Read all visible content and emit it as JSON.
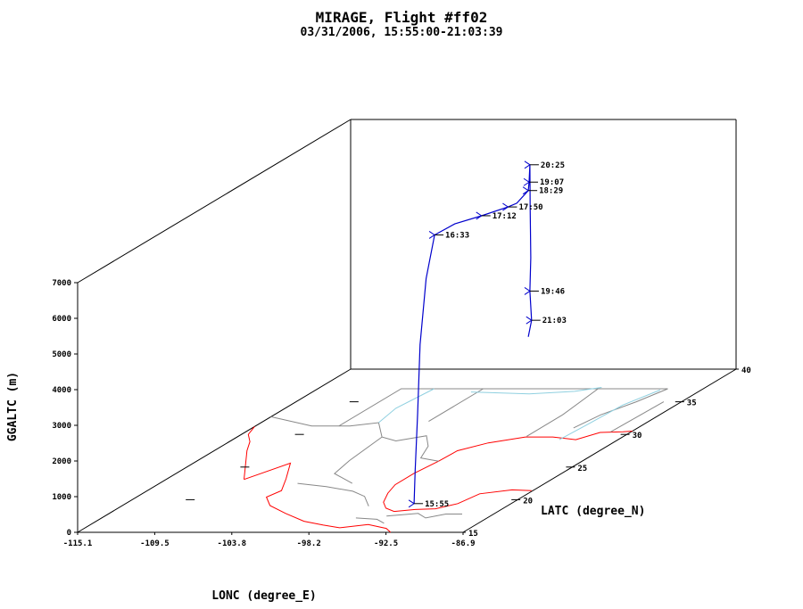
{
  "chart_data": {
    "type": "line",
    "title": "MIRAGE, Flight #ff02",
    "subtitle": "03/31/2006, 15:55:00-21:03:39",
    "xlabel": "LONC (degree_E)",
    "ylabel": "LATC (degree_N)",
    "zlabel": "GGALTC (m)",
    "xlim": [
      -115.1,
      -86.9
    ],
    "ylim": [
      15,
      40
    ],
    "zlim": [
      0,
      7000
    ],
    "x_ticks": [
      "-115.1",
      "-109.5",
      "-103.8",
      "-98.2",
      "-92.5",
      "-86.9"
    ],
    "y_ticks": [
      "15",
      "20",
      "25",
      "30",
      "35",
      "40"
    ],
    "z_ticks": [
      "0",
      "1000",
      "2000",
      "3000",
      "4000",
      "5000",
      "6000",
      "7000"
    ],
    "grid": false,
    "series": [
      {
        "color": "#0000cc",
        "points": [
          {
            "time": "15:55",
            "lon": -94.0,
            "lat": 19.4,
            "alt": 0
          },
          {
            "lon": -94.0,
            "lat": 19.5,
            "alt": 900
          },
          {
            "lon": -93.9,
            "lat": 19.6,
            "alt": 2500
          },
          {
            "lon": -93.8,
            "lat": 19.7,
            "alt": 4400
          },
          {
            "lon": -93.6,
            "lat": 20.0,
            "alt": 6200
          },
          {
            "time": "16:33",
            "lon": -93.3,
            "lat": 20.4,
            "alt": 7350
          },
          {
            "lon": -92.3,
            "lat": 21.0,
            "alt": 7550
          },
          {
            "time": "17:12",
            "lon": -90.9,
            "lat": 21.7,
            "alt": 7650
          },
          {
            "time": "17:50",
            "lon": -89.6,
            "lat": 22.5,
            "alt": 7750
          },
          {
            "lon": -89.2,
            "lat": 22.8,
            "alt": 7800
          },
          {
            "time": "18:29",
            "lon": -88.6,
            "lat": 23.1,
            "alt": 8100
          },
          {
            "time": "19:07",
            "lon": -88.7,
            "lat": 23.3,
            "alt": 8300
          },
          {
            "time": "20:25",
            "lon": -88.8,
            "lat": 23.5,
            "alt": 8750
          },
          {
            "lon": -88.7,
            "lat": 23.4,
            "alt": 7600
          },
          {
            "lon": -88.5,
            "lat": 23.2,
            "alt": 6200
          },
          {
            "time": "19:46",
            "lon": -88.4,
            "lat": 23.0,
            "alt": 5300
          },
          {
            "time": "21:03",
            "lon": -88.2,
            "lat": 22.9,
            "alt": 4500
          },
          {
            "lon": -88.6,
            "lat": 23.1,
            "alt": 4000
          }
        ]
      }
    ],
    "labeled_times": [
      "15:55",
      "16:33",
      "17:12",
      "17:50",
      "18:29",
      "19:07",
      "20:25",
      "19:46",
      "21:03"
    ]
  },
  "colors": {
    "track": "#0000cc",
    "coastline": "#ff0000",
    "borders": "#888888",
    "rivers": "#8fd0e0",
    "frame": "#000000"
  }
}
